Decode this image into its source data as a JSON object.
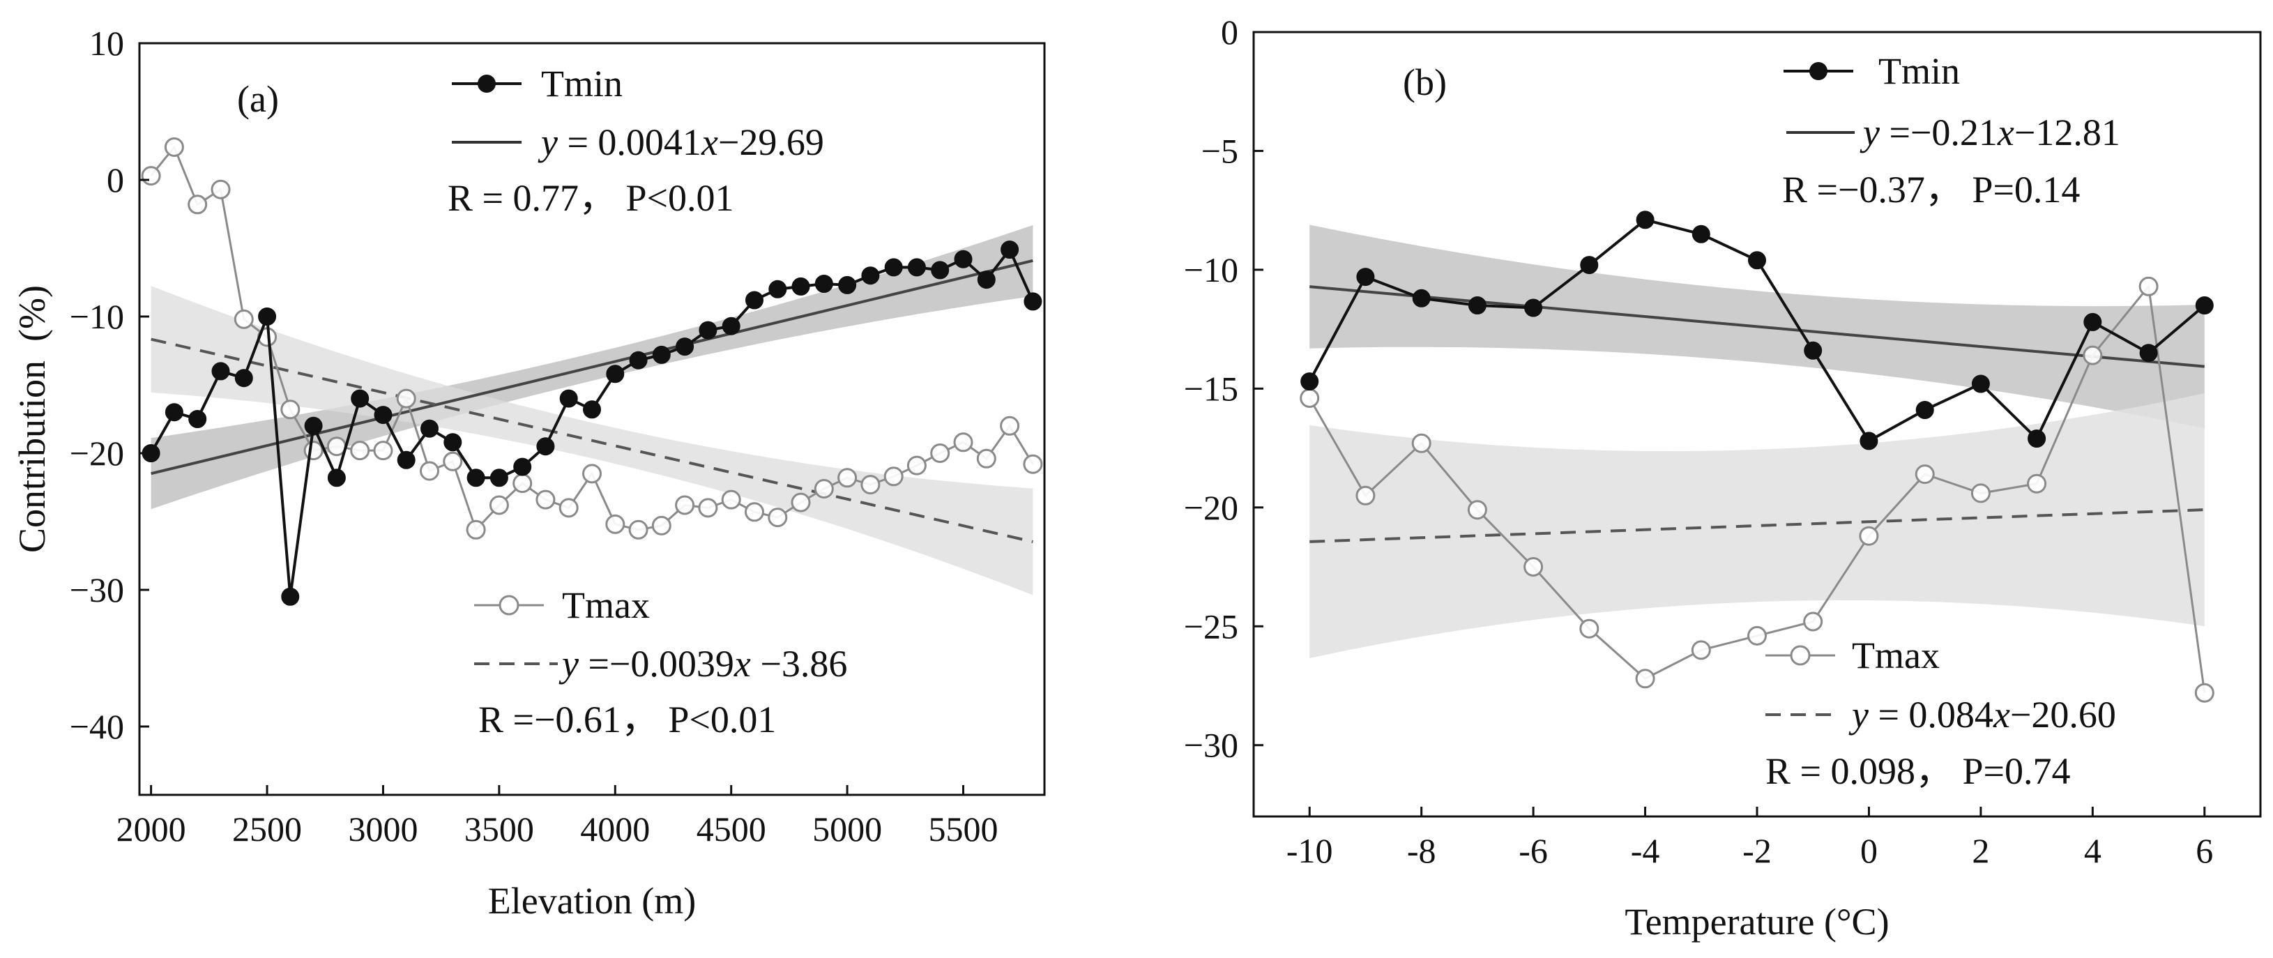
{
  "chart_data": [
    {
      "type": "line",
      "panel_label": "(a)",
      "xlabel": "Elevation (m)",
      "ylabel": "Contribution  (%)",
      "xlim": [
        1950,
        5850
      ],
      "ylim": [
        -45,
        10
      ],
      "xticks": [
        2000,
        2500,
        3000,
        3500,
        4000,
        4500,
        5000,
        5500
      ],
      "yticks": [
        10,
        0,
        -10,
        -20,
        -30,
        -40
      ],
      "ytick_labels": [
        "10",
        "0",
        "−10",
        "−20",
        "−30",
        "−40"
      ],
      "grid": false,
      "series": [
        {
          "name": "Tmin",
          "marker": "filled-circle",
          "color": "#111111",
          "x": [
            2000,
            2100,
            2200,
            2300,
            2400,
            2500,
            2600,
            2700,
            2800,
            2900,
            3000,
            3100,
            3200,
            3300,
            3400,
            3500,
            3600,
            3700,
            3800,
            3900,
            4000,
            4100,
            4200,
            4300,
            4400,
            4500,
            4600,
            4700,
            4800,
            4900,
            5000,
            5100,
            5200,
            5300,
            5400,
            5500,
            5600,
            5700,
            5800
          ],
          "y": [
            -20,
            -17,
            -17.5,
            -14,
            -14.5,
            -10,
            -30.5,
            -18,
            -21.8,
            -16,
            -17.2,
            -20.5,
            -18.2,
            -19.2,
            -21.8,
            -21.8,
            -21,
            -19.5,
            -16,
            -16.8,
            -14.2,
            -13.2,
            -12.8,
            -12.2,
            -11,
            -10.7,
            -8.8,
            -8,
            -7.8,
            -7.6,
            -7.7,
            -7,
            -6.4,
            -6.4,
            -6.6,
            -5.8,
            -7.3,
            -5.1,
            -8.9
          ]
        },
        {
          "name": "Tmax",
          "marker": "open-circle",
          "color": "#8a8a8a",
          "x": [
            2000,
            2100,
            2200,
            2300,
            2400,
            2500,
            2600,
            2700,
            2800,
            2900,
            3000,
            3100,
            3200,
            3300,
            3400,
            3500,
            3600,
            3700,
            3800,
            3900,
            4000,
            4100,
            4200,
            4300,
            4400,
            4500,
            4600,
            4700,
            4800,
            4900,
            5000,
            5100,
            5200,
            5300,
            5400,
            5500,
            5600,
            5700,
            5800
          ],
          "y": [
            0.3,
            2.4,
            -1.8,
            -0.7,
            -10.2,
            -11.5,
            -16.8,
            -19.8,
            -19.5,
            -19.8,
            -19.8,
            -16,
            -21.3,
            -20.6,
            -25.6,
            -23.8,
            -22.2,
            -23.4,
            -24,
            -21.5,
            -25.2,
            -25.6,
            -25.3,
            -23.8,
            -24,
            -23.4,
            -24.3,
            -24.7,
            -23.6,
            -22.6,
            -21.8,
            -22.3,
            -21.7,
            -20.9,
            -20,
            -19.2,
            -20.4,
            -18,
            -20.8
          ]
        }
      ],
      "fits": [
        {
          "series": "Tmin",
          "style": "solid",
          "slope": 0.0041,
          "intercept": -29.69,
          "band_halfwidth": [
            2.6,
            1.0,
            2.6
          ]
        },
        {
          "series": "Tmax",
          "style": "dashed",
          "slope": -0.0039,
          "intercept": -3.86,
          "band_halfwidth": [
            3.9,
            1.3,
            3.9
          ]
        }
      ],
      "legend": {
        "tmin_label": "Tmin",
        "tmin_eq_prefix": "y",
        "tmin_eq_rest": " = 0.0041",
        "tmin_eq_x": "x",
        "tmin_eq_end": "−29.69",
        "tmin_stats": "R = 0.77， P<0.01",
        "tmax_label": "Tmax",
        "tmax_eq_prefix": "y",
        "tmax_eq_rest": " =−0.0039",
        "tmax_eq_x": "x",
        "tmax_eq_end": " −3.86",
        "tmax_stats": "R =−0.61， P<0.01"
      }
    },
    {
      "type": "line",
      "panel_label": "(b)",
      "xlabel": "Temperature (°C)",
      "ylabel": "",
      "xlim": [
        -11,
        7
      ],
      "ylim": [
        -33,
        0
      ],
      "xticks": [
        -10,
        -8,
        -6,
        -4,
        -2,
        0,
        2,
        4,
        6
      ],
      "xtick_labels": [
        "-10",
        "-8",
        "-6",
        "-4",
        "-2",
        "0",
        "2",
        "4",
        "6"
      ],
      "yticks": [
        0,
        -5,
        -10,
        -15,
        -20,
        -25,
        -30
      ],
      "ytick_labels": [
        "0",
        "−5",
        "−10",
        "−15",
        "−20",
        "−25",
        "−30"
      ],
      "grid": false,
      "series": [
        {
          "name": "Tmin",
          "marker": "filled-circle",
          "color": "#111111",
          "x": [
            -10,
            -9,
            -8,
            -7,
            -6,
            -5,
            -4,
            -3,
            -2,
            -1,
            0,
            1,
            2,
            3,
            4,
            5,
            6
          ],
          "y": [
            -14.7,
            -10.3,
            -11.2,
            -11.5,
            -11.6,
            -9.8,
            -7.9,
            -8.5,
            -9.6,
            -13.4,
            -17.2,
            -15.9,
            -14.8,
            -17.1,
            -12.2,
            -13.5,
            -11.5
          ]
        },
        {
          "name": "Tmax",
          "marker": "open-circle",
          "color": "#8a8a8a",
          "x": [
            -10,
            -9,
            -8,
            -7,
            -6,
            -5,
            -4,
            -3,
            -2,
            -1,
            0,
            1,
            2,
            3,
            4,
            5,
            6
          ],
          "y": [
            -15.4,
            -19.5,
            -17.3,
            -20.1,
            -22.5,
            -25.1,
            -27.2,
            -26,
            -25.4,
            -24.8,
            -21.2,
            -18.6,
            -19.4,
            -19,
            -13.6,
            -10.7,
            -27.8
          ]
        }
      ],
      "fits": [
        {
          "series": "Tmin",
          "style": "solid",
          "slope": -0.21,
          "intercept": -12.81,
          "band_halfwidth": [
            2.6,
            1.5,
            2.6
          ]
        },
        {
          "series": "Tmax",
          "style": "dashed",
          "slope": 0.084,
          "intercept": -20.6,
          "band_halfwidth": [
            4.9,
            3.2,
            4.9
          ]
        }
      ],
      "legend": {
        "tmin_label": "Tmin",
        "tmin_eq_prefix": "y",
        "tmin_eq_rest": " =−0.21",
        "tmin_eq_x": "x",
        "tmin_eq_end": "−12.81",
        "tmin_stats": "R =−0.37， P=0.14",
        "tmax_label": "Tmax",
        "tmax_eq_prefix": "y",
        "tmax_eq_rest": " = 0.084",
        "tmax_eq_x": "x",
        "tmax_eq_end": "−20.60",
        "tmax_stats": "R = 0.098， P=0.74"
      }
    }
  ]
}
